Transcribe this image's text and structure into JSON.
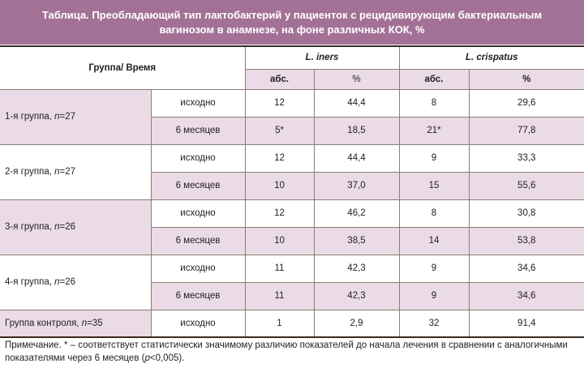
{
  "title": {
    "line1": "Таблица. Преобладающий тип лактобактерий у пациенток с рецидивирующим бактериальным",
    "line2": "вагинозом в анамнезе, на фоне различных КОК, %"
  },
  "header": {
    "group_time": "Группа/ Время",
    "iners": "L. iners",
    "crispatus": "L. crispatus",
    "abs": "абс.",
    "pct": "%"
  },
  "rows": [
    {
      "group": "1-я группа, ",
      "n": "n",
      "nval": "=27",
      "items": [
        [
          "исходно",
          "12",
          "44,4",
          "8",
          "29,6"
        ],
        [
          "6 месяцев",
          "5*",
          "18,5",
          "21*",
          "77,8"
        ]
      ]
    },
    {
      "group": "2-я группа, ",
      "n": "n",
      "nval": "=27",
      "items": [
        [
          "исходно",
          "12",
          "44,4",
          "9",
          "33,3"
        ],
        [
          "6 месяцев",
          "10",
          "37,0",
          "15",
          "55,6"
        ]
      ]
    },
    {
      "group": "3-я группа, ",
      "n": "n",
      "nval": "=26",
      "items": [
        [
          "исходно",
          "12",
          "46,2",
          "8",
          "30,8"
        ],
        [
          "6 месяцев",
          "10",
          "38,5",
          "14",
          "53,8"
        ]
      ]
    },
    {
      "group": "4-я группа, ",
      "n": "n",
      "nval": "=26",
      "items": [
        [
          "исходно",
          "11",
          "42,3",
          "9",
          "34,6"
        ],
        [
          "6 месяцев",
          "11",
          "42,3",
          "9",
          "34,6"
        ]
      ]
    },
    {
      "group": "Группа контроля, ",
      "n": "n",
      "nval": "=35",
      "items": [
        [
          "исходно",
          "1",
          "2,9",
          "32",
          "91,4"
        ]
      ]
    }
  ],
  "note": {
    "text1": "Примечание. * – соответствует статистически значимому различию показателей до начала лечения в сравнении с аналогичными показателями через 6 месяцев (",
    "p": "p",
    "text2": "<0,005)."
  }
}
